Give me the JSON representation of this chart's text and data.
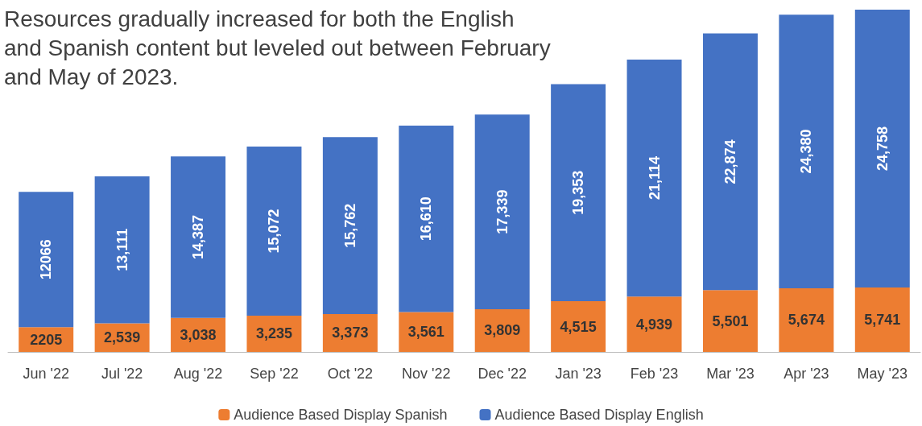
{
  "chart_data": {
    "type": "bar",
    "title": "Resources gradually increased for both the English and Spanish content but leveled out between February and May of 2023.",
    "categories": [
      "Jun '22",
      "Jul '22",
      "Aug '22",
      "Sep '22",
      "Oct '22",
      "Nov '22",
      "Dec '22",
      "Jan '23",
      "Feb '23",
      "Mar '23",
      "Apr '23",
      "May '23"
    ],
    "stacked": true,
    "legend": "bottom",
    "series": [
      {
        "name": "Audience Based Display Spanish",
        "color": "#ed7d31",
        "values": [
          2205,
          2539,
          3038,
          3235,
          3373,
          3561,
          3809,
          4515,
          4939,
          5501,
          5674,
          5741
        ],
        "value_labels": [
          "2205",
          "2,539",
          "3,038",
          "3,235",
          "3,373",
          "3,561",
          "3,809",
          "4,515",
          "4,939",
          "5,501",
          "5,674",
          "5,741"
        ]
      },
      {
        "name": "Audience Based Display English",
        "color": "#4472c4",
        "values": [
          12066,
          13111,
          14387,
          15072,
          15762,
          16610,
          17339,
          19353,
          21114,
          22874,
          24380,
          24758
        ],
        "value_labels": [
          "12066",
          "13,111",
          "14,387",
          "15,072",
          "15,762",
          "16,610",
          "17,339",
          "19,353",
          "21,114",
          "22,874",
          "24,380",
          "24,758"
        ]
      }
    ]
  }
}
